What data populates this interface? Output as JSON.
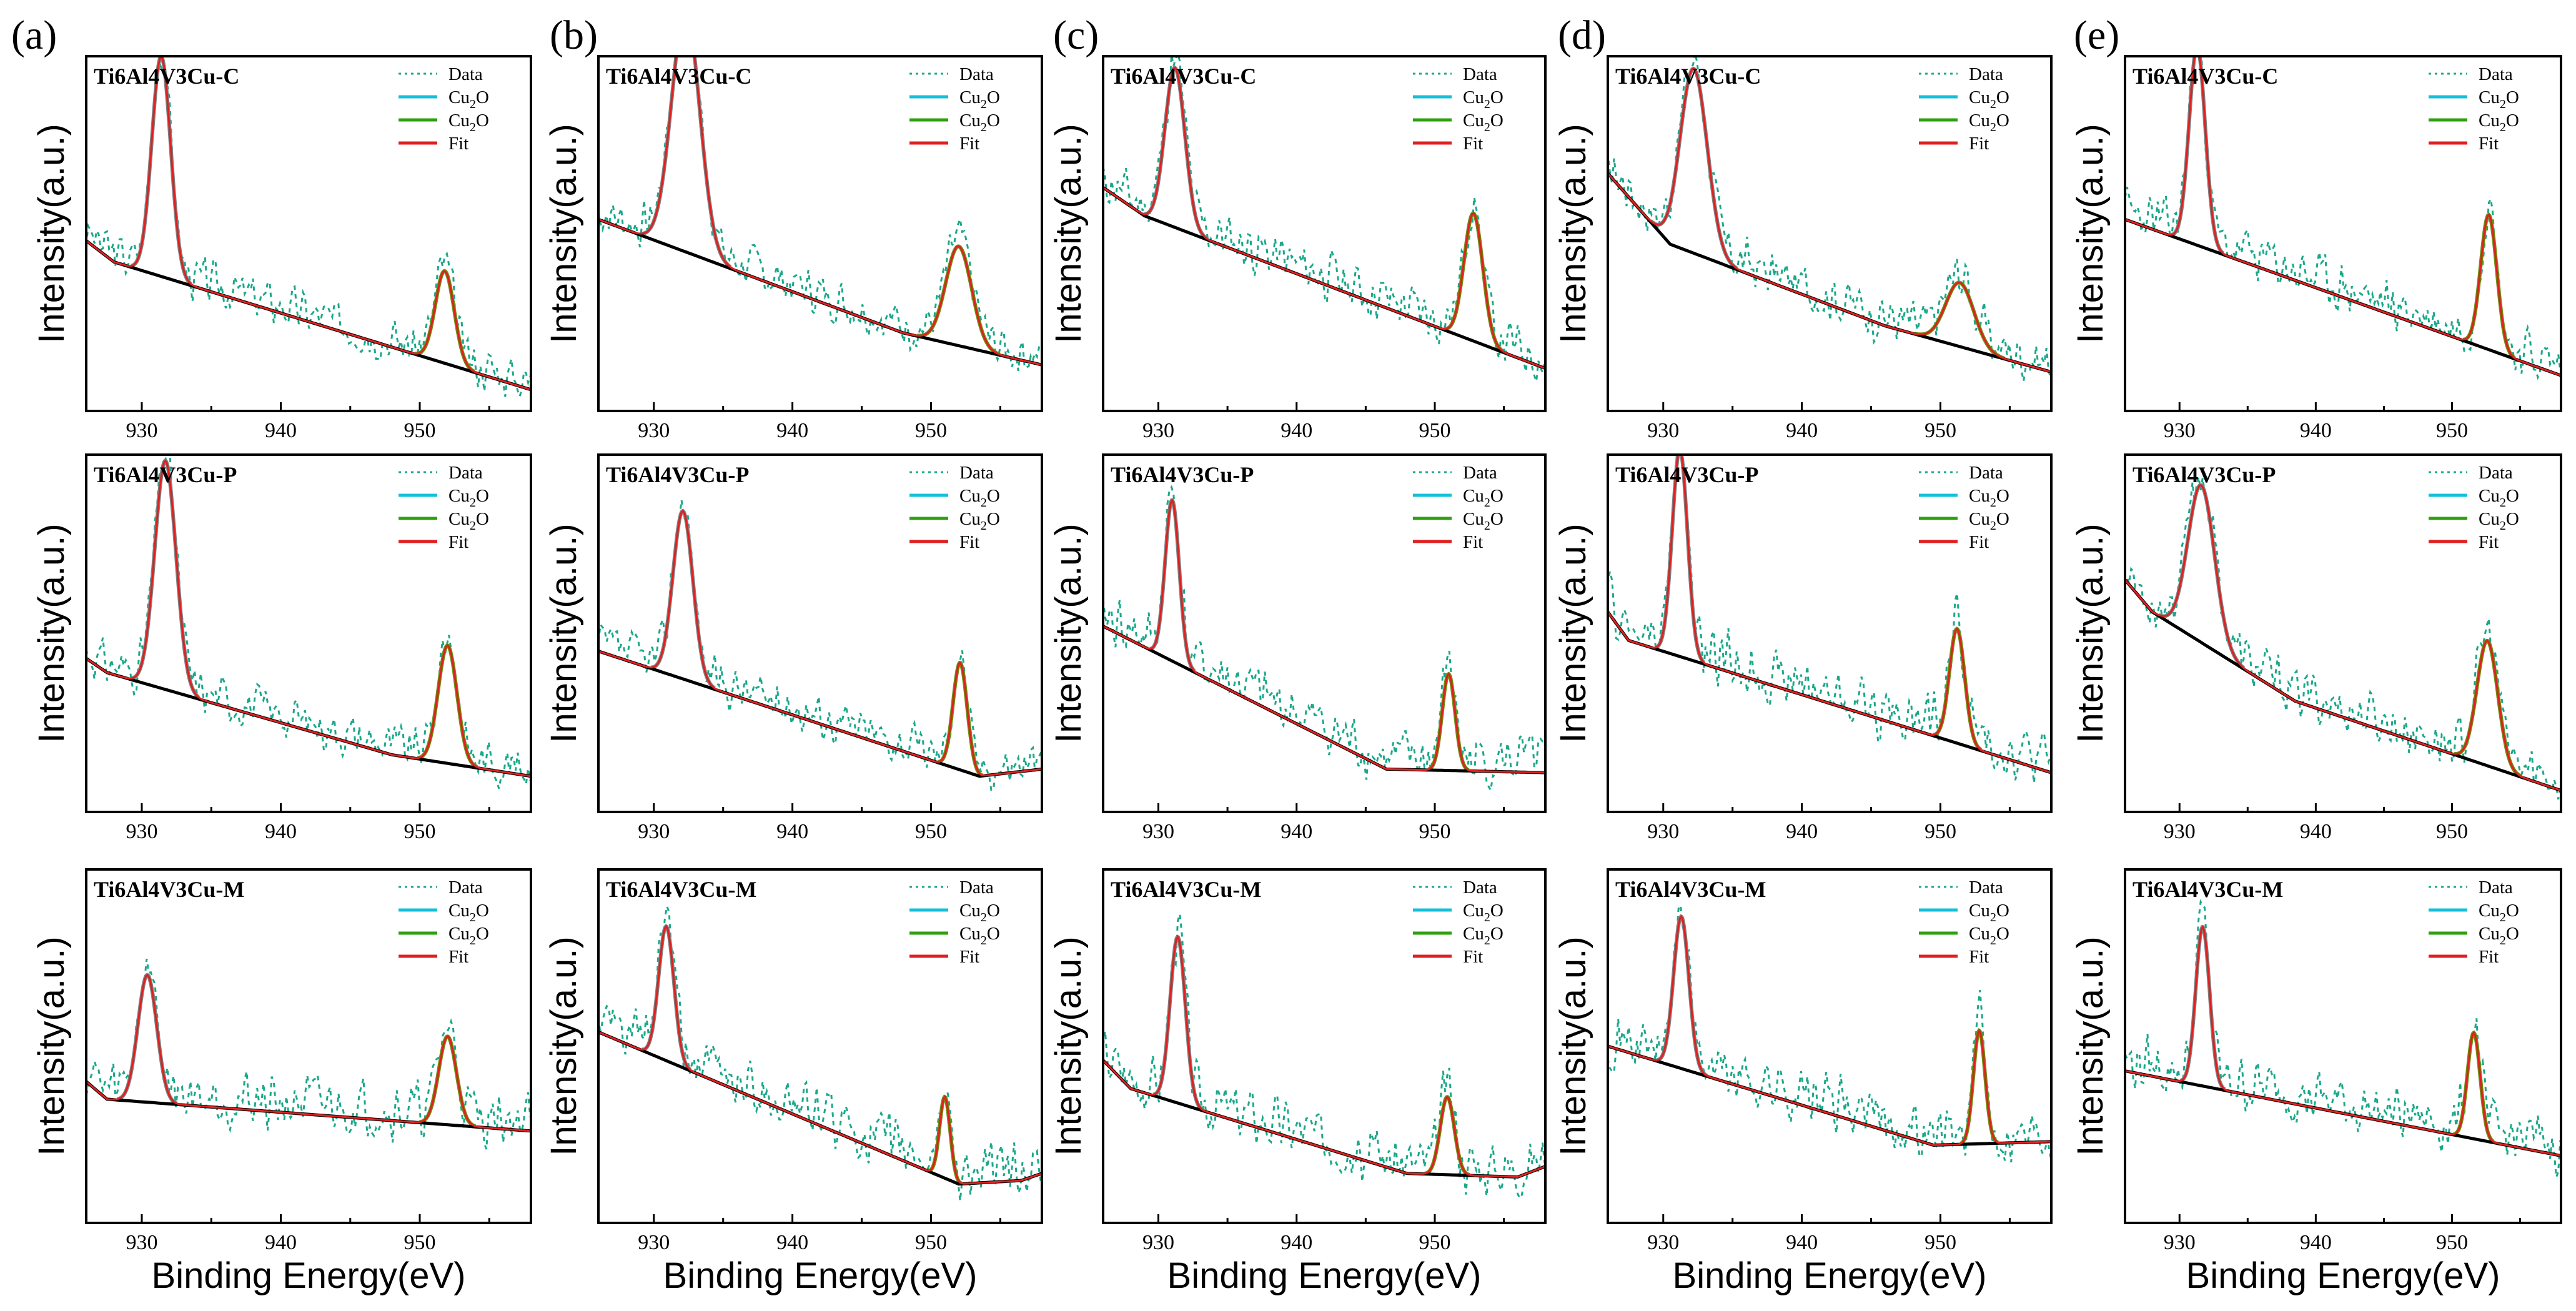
{
  "colors": {
    "data": "#1aa88a",
    "cu2o_1_legend": "#14c0d8",
    "cu2o_2_legend": "#2fa010",
    "peak1_curve": "#7f7f7f",
    "peak2_curve": "#6b8f10",
    "fit": "#e02020",
    "background": "#000000"
  },
  "legend": [
    {
      "label": "Data",
      "main": "Data",
      "sub": "",
      "tail": "",
      "color": "#1aa88a",
      "style": "dotted"
    },
    {
      "label": "Cu2O",
      "main": "Cu",
      "sub": "2",
      "tail": "O",
      "color": "#14c0d8",
      "style": "solid"
    },
    {
      "label": "Cu2O",
      "main": "Cu",
      "sub": "2",
      "tail": "O",
      "color": "#2fa010",
      "style": "solid"
    },
    {
      "label": "Fit",
      "main": "Fit",
      "sub": "",
      "tail": "",
      "color": "#e02020",
      "style": "solid"
    }
  ],
  "ylabel": "Intensity(a.u.)",
  "xlabel": "Binding Energy(eV)",
  "xticks": [
    930,
    940,
    950
  ],
  "columns": [
    {
      "letter": "(a)"
    },
    {
      "letter": "(b)"
    },
    {
      "letter": "(c)"
    },
    {
      "letter": "(d)"
    },
    {
      "letter": "(e)"
    }
  ],
  "rows": [
    {
      "sample": "Ti6Al4V3Cu-C"
    },
    {
      "sample": "Ti6Al4V3Cu-P"
    },
    {
      "sample": "Ti6Al4V3Cu-M"
    }
  ],
  "chart_data": [
    {
      "panel": "(a)",
      "sample": "Ti6Al4V3Cu-C",
      "type": "line",
      "xlim": [
        926,
        958
      ],
      "ylim": [
        0,
        1
      ],
      "peaks": [
        {
          "center": 931.4,
          "height": 0.62,
          "fwhm": 1.6
        },
        {
          "center": 951.8,
          "height": 0.26,
          "fwhm": 1.6
        }
      ],
      "background": {
        "x": [
          926,
          928,
          958
        ],
        "y": [
          0.48,
          0.42,
          0.06
        ]
      },
      "noise": 0.07,
      "seed": 3
    },
    {
      "panel": "(b)",
      "sample": "Ti6Al4V3Cu-C",
      "type": "line",
      "xlim": [
        926,
        958
      ],
      "ylim": [
        0,
        1
      ],
      "peaks": [
        {
          "center": 932.3,
          "height": 0.68,
          "fwhm": 2.4
        },
        {
          "center": 952.0,
          "height": 0.28,
          "fwhm": 2.2
        }
      ],
      "background": {
        "x": [
          926,
          948,
          958
        ],
        "y": [
          0.54,
          0.22,
          0.13
        ]
      },
      "noise": 0.07,
      "seed": 7
    },
    {
      "panel": "(c)",
      "sample": "Ti6Al4V3Cu-C",
      "type": "line",
      "xlim": [
        926,
        958
      ],
      "ylim": [
        0,
        1
      ],
      "peaks": [
        {
          "center": 931.2,
          "height": 0.45,
          "fwhm": 1.7
        },
        {
          "center": 952.8,
          "height": 0.36,
          "fwhm": 1.6
        }
      ],
      "background": {
        "x": [
          926,
          929,
          958
        ],
        "y": [
          0.63,
          0.55,
          0.12
        ]
      },
      "noise": 0.08,
      "seed": 11
    },
    {
      "panel": "(d)",
      "sample": "Ti6Al4V3Cu-C",
      "type": "line",
      "xlim": [
        926,
        958
      ],
      "ylim": [
        0,
        1
      ],
      "peaks": [
        {
          "center": 932.2,
          "height": 0.52,
          "fwhm": 2.3
        },
        {
          "center": 951.4,
          "height": 0.18,
          "fwhm": 2.4
        }
      ],
      "background": {
        "x": [
          926,
          930.5,
          946,
          958
        ],
        "y": [
          0.67,
          0.47,
          0.24,
          0.11
        ]
      },
      "noise": 0.08,
      "seed": 17
    },
    {
      "panel": "(e)",
      "sample": "Ti6Al4V3Cu-C",
      "type": "line",
      "xlim": [
        926,
        958
      ],
      "ylim": [
        0,
        1
      ],
      "peaks": [
        {
          "center": 931.3,
          "height": 0.56,
          "fwhm": 1.4
        },
        {
          "center": 952.7,
          "height": 0.38,
          "fwhm": 1.4
        }
      ],
      "background": {
        "x": [
          926,
          958
        ],
        "y": [
          0.54,
          0.1
        ]
      },
      "noise": 0.08,
      "seed": 23
    },
    {
      "panel": "(a)",
      "sample": "Ti6Al4V3Cu-P",
      "type": "line",
      "xlim": [
        926,
        958
      ],
      "ylim": [
        0,
        1
      ],
      "peaks": [
        {
          "center": 931.7,
          "height": 0.64,
          "fwhm": 1.8
        },
        {
          "center": 952.0,
          "height": 0.33,
          "fwhm": 1.6
        }
      ],
      "background": {
        "x": [
          926,
          927.5,
          948,
          958
        ],
        "y": [
          0.43,
          0.39,
          0.16,
          0.1
        ]
      },
      "noise": 0.07,
      "seed": 31
    },
    {
      "panel": "(b)",
      "sample": "Ti6Al4V3Cu-P",
      "type": "line",
      "xlim": [
        926,
        958
      ],
      "ylim": [
        0,
        1
      ],
      "peaks": [
        {
          "center": 932.1,
          "height": 0.47,
          "fwhm": 1.7
        },
        {
          "center": 952.1,
          "height": 0.3,
          "fwhm": 1.2
        }
      ],
      "background": {
        "x": [
          926,
          953.5,
          958
        ],
        "y": [
          0.45,
          0.1,
          0.12
        ]
      },
      "noise": 0.07,
      "seed": 37
    },
    {
      "panel": "(c)",
      "sample": "Ti6Al4V3Cu-P",
      "type": "line",
      "xlim": [
        926,
        958
      ],
      "ylim": [
        0,
        1
      ],
      "peaks": [
        {
          "center": 931.0,
          "height": 0.45,
          "fwhm": 1.2
        },
        {
          "center": 951.0,
          "height": 0.27,
          "fwhm": 1.1
        }
      ],
      "background": {
        "x": [
          926,
          946.5,
          958
        ],
        "y": [
          0.52,
          0.12,
          0.11
        ]
      },
      "noise": 0.09,
      "seed": 41
    },
    {
      "panel": "(d)",
      "sample": "Ti6Al4V3Cu-P",
      "type": "line",
      "xlim": [
        926,
        958
      ],
      "ylim": [
        0,
        1
      ],
      "peaks": [
        {
          "center": 931.2,
          "height": 0.58,
          "fwhm": 1.3
        },
        {
          "center": 951.2,
          "height": 0.32,
          "fwhm": 1.3
        }
      ],
      "background": {
        "x": [
          926,
          927.5,
          958
        ],
        "y": [
          0.56,
          0.48,
          0.11
        ]
      },
      "noise": 0.09,
      "seed": 47
    },
    {
      "panel": "(e)",
      "sample": "Ti6Al4V3Cu-P",
      "type": "line",
      "xlim": [
        926,
        958
      ],
      "ylim": [
        0,
        1
      ],
      "peaks": [
        {
          "center": 931.6,
          "height": 0.44,
          "fwhm": 2.3
        },
        {
          "center": 952.6,
          "height": 0.35,
          "fwhm": 1.8
        }
      ],
      "background": {
        "x": [
          926,
          928,
          938.5,
          958
        ],
        "y": [
          0.65,
          0.56,
          0.31,
          0.06
        ]
      },
      "noise": 0.08,
      "seed": 53
    },
    {
      "panel": "(a)",
      "sample": "Ti6Al4V3Cu-M",
      "type": "line",
      "xlim": [
        926,
        958
      ],
      "ylim": [
        0,
        1
      ],
      "peaks": [
        {
          "center": 930.4,
          "height": 0.36,
          "fwhm": 1.6
        },
        {
          "center": 952.0,
          "height": 0.25,
          "fwhm": 1.5
        }
      ],
      "background": {
        "x": [
          926,
          927.5,
          958
        ],
        "y": [
          0.4,
          0.35,
          0.26
        ]
      },
      "noise": 0.09,
      "seed": 59
    },
    {
      "panel": "(b)",
      "sample": "Ti6Al4V3Cu-M",
      "type": "line",
      "xlim": [
        926,
        958
      ],
      "ylim": [
        0,
        1
      ],
      "peaks": [
        {
          "center": 930.9,
          "height": 0.38,
          "fwhm": 1.3
        },
        {
          "center": 951.0,
          "height": 0.23,
          "fwhm": 0.9
        }
      ],
      "background": {
        "x": [
          926,
          952,
          956.5,
          958
        ],
        "y": [
          0.54,
          0.11,
          0.12,
          0.14
        ]
      },
      "noise": 0.09,
      "seed": 61
    },
    {
      "panel": "(c)",
      "sample": "Ti6Al4V3Cu-M",
      "type": "line",
      "xlim": [
        926,
        958
      ],
      "ylim": [
        0,
        1
      ],
      "peaks": [
        {
          "center": 931.4,
          "height": 0.47,
          "fwhm": 1.3
        },
        {
          "center": 950.9,
          "height": 0.22,
          "fwhm": 1.2
        }
      ],
      "background": {
        "x": [
          926,
          928,
          948,
          956,
          958
        ],
        "y": [
          0.46,
          0.38,
          0.14,
          0.13,
          0.16
        ]
      },
      "noise": 0.09,
      "seed": 67
    },
    {
      "panel": "(d)",
      "sample": "Ti6Al4V3Cu-M",
      "type": "line",
      "xlim": [
        926,
        958
      ],
      "ylim": [
        0,
        1
      ],
      "peaks": [
        {
          "center": 931.3,
          "height": 0.43,
          "fwhm": 1.3
        },
        {
          "center": 952.8,
          "height": 0.32,
          "fwhm": 1.0
        }
      ],
      "background": {
        "x": [
          926,
          949.5,
          958
        ],
        "y": [
          0.5,
          0.22,
          0.23
        ]
      },
      "noise": 0.09,
      "seed": 71
    },
    {
      "panel": "(e)",
      "sample": "Ti6Al4V3Cu-M",
      "type": "line",
      "xlim": [
        926,
        958
      ],
      "ylim": [
        0,
        1
      ],
      "peaks": [
        {
          "center": 931.7,
          "height": 0.45,
          "fwhm": 1.2
        },
        {
          "center": 951.6,
          "height": 0.3,
          "fwhm": 1.1
        }
      ],
      "background": {
        "x": [
          926,
          958
        ],
        "y": [
          0.43,
          0.19
        ]
      },
      "noise": 0.09,
      "seed": 79
    }
  ]
}
